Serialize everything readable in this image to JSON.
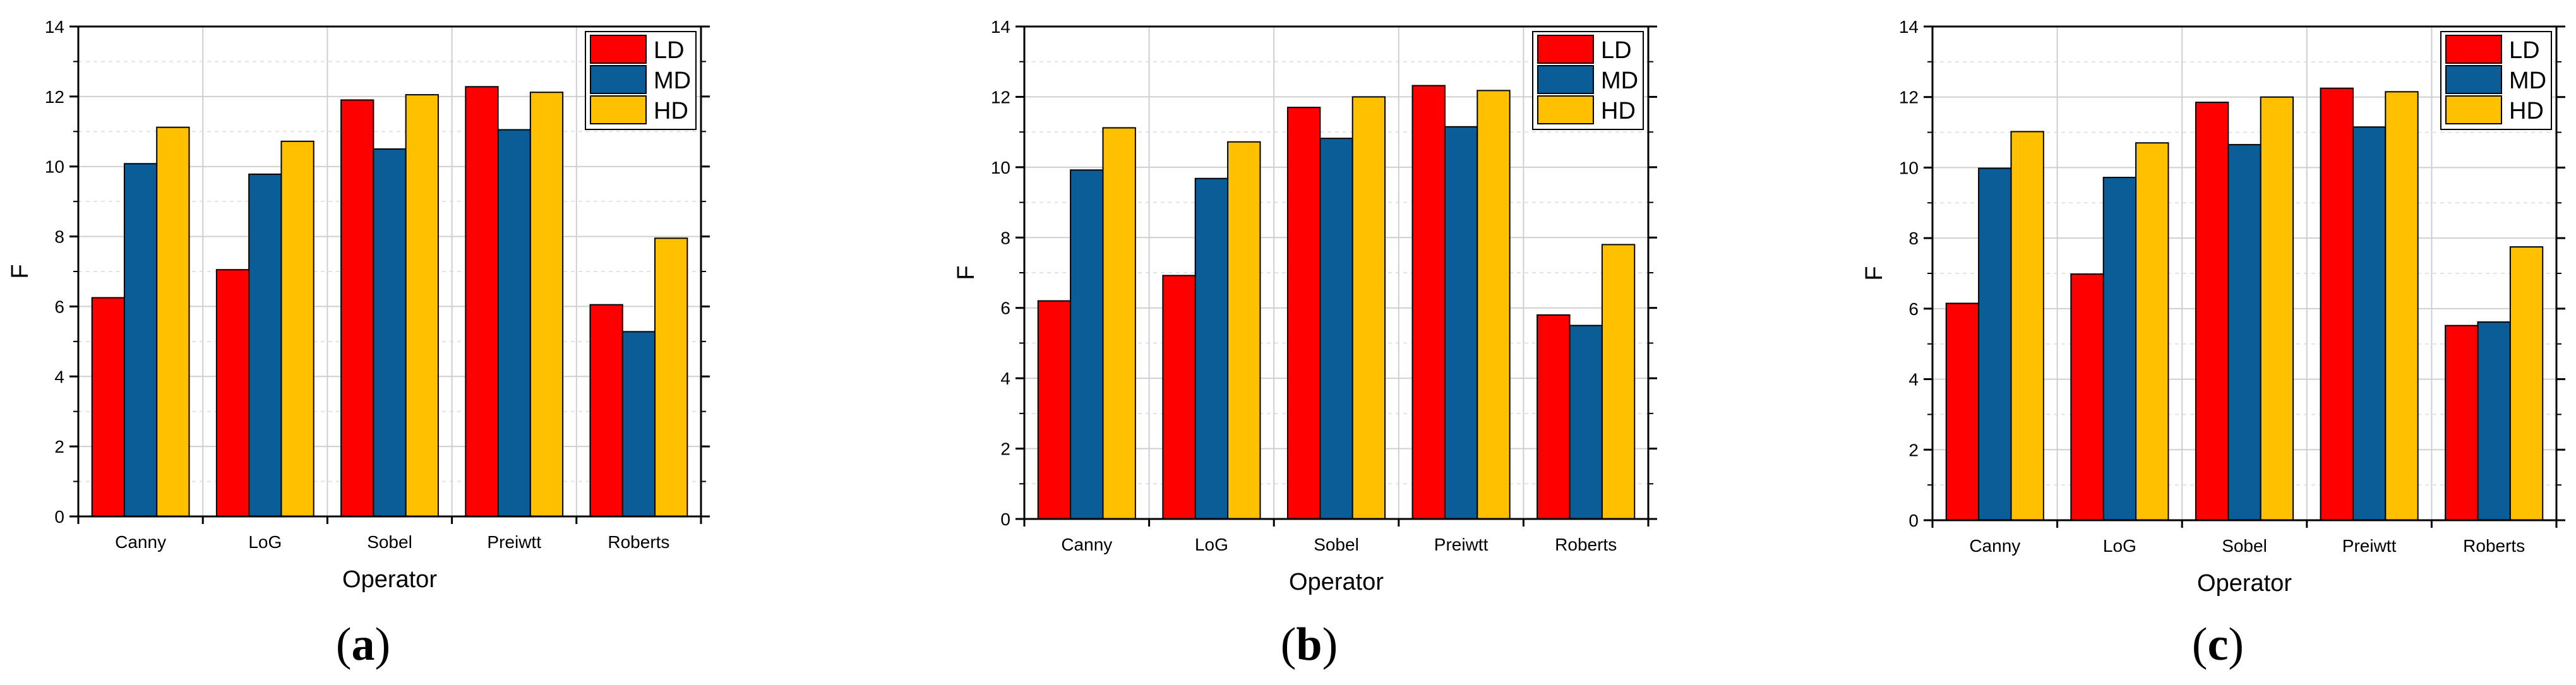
{
  "colors": {
    "LD": "#ff0000",
    "MD": "#0a5d96",
    "HD": "#ffc000",
    "grid": "#cfcfcf",
    "axis": "#000000"
  },
  "chart_data": [
    {
      "type": "bar",
      "panel_label": {
        "open": "(",
        "letter": "a",
        "close": ")"
      },
      "categories": [
        "Canny",
        "LoG",
        "Sobel",
        "Preiwtt",
        "Roberts"
      ],
      "series": [
        {
          "name": "LD",
          "values": [
            6.25,
            7.05,
            11.9,
            12.28,
            6.05
          ]
        },
        {
          "name": "MD",
          "values": [
            10.08,
            9.78,
            10.5,
            11.05,
            5.28
          ]
        },
        {
          "name": "HD",
          "values": [
            11.12,
            10.72,
            12.05,
            12.12,
            7.95
          ]
        }
      ],
      "xlabel": "Operator",
      "ylabel": "F",
      "ylim": [
        0,
        14
      ],
      "yticks": [
        "0",
        "2",
        "4",
        "6",
        "8",
        "10",
        "12",
        "14"
      ],
      "grid": true,
      "legend": "top-right"
    },
    {
      "type": "bar",
      "panel_label": {
        "open": "(",
        "letter": "b",
        "close": ")"
      },
      "categories": [
        "Canny",
        "LoG",
        "Sobel",
        "Preiwtt",
        "Roberts"
      ],
      "series": [
        {
          "name": "LD",
          "values": [
            6.2,
            6.92,
            11.7,
            12.32,
            5.8
          ]
        },
        {
          "name": "MD",
          "values": [
            9.92,
            9.68,
            10.82,
            11.15,
            5.5
          ]
        },
        {
          "name": "HD",
          "values": [
            11.12,
            10.72,
            12.0,
            12.18,
            7.8
          ]
        }
      ],
      "xlabel": "Operator",
      "ylabel": "F",
      "ylim": [
        0,
        14
      ],
      "yticks": [
        "0",
        "2",
        "4",
        "6",
        "8",
        "10",
        "12",
        "14"
      ],
      "grid": true,
      "legend": "top-right"
    },
    {
      "type": "bar",
      "panel_label": {
        "open": "(",
        "letter": "c",
        "close": ")"
      },
      "categories": [
        "Canny",
        "LoG",
        "Sobel",
        "Preiwtt",
        "Roberts"
      ],
      "series": [
        {
          "name": "LD",
          "values": [
            6.15,
            6.98,
            11.85,
            12.25,
            5.52
          ]
        },
        {
          "name": "MD",
          "values": [
            9.98,
            9.72,
            10.65,
            11.15,
            5.62
          ]
        },
        {
          "name": "HD",
          "values": [
            11.02,
            10.7,
            12.0,
            12.15,
            7.75
          ]
        }
      ],
      "xlabel": "Operator",
      "ylabel": "F",
      "ylim": [
        0,
        14
      ],
      "yticks": [
        "0",
        "2",
        "4",
        "6",
        "8",
        "10",
        "12",
        "14"
      ],
      "grid": true,
      "legend": "top-right"
    }
  ]
}
